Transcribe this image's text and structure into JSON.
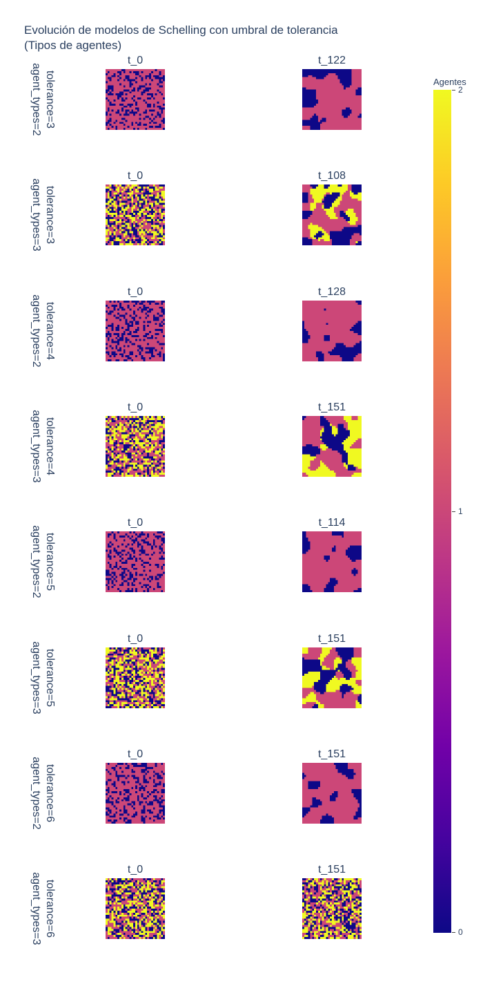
{
  "title_lines": [
    "Evolución de modelos de Schelling con umbral de tolerancia",
    "(Tipos de agentes)"
  ],
  "colorbar": {
    "title": "Agentes",
    "ticks": [
      "2",
      "1",
      "0"
    ],
    "colors": [
      "#0d0887",
      "#46039f",
      "#7201a8",
      "#9c179e",
      "#bd3786",
      "#d8576b",
      "#ed7953",
      "#fb9f3a",
      "#fdca26",
      "#f0f921"
    ]
  },
  "chart_data": {
    "type": "heatmap",
    "title": "Evolución de modelos de Schelling con umbral de tolerancia (Tipos de agentes)",
    "colorscale_title": "Agentes",
    "zlim": [
      0,
      2
    ],
    "grid_size": [
      30,
      30
    ],
    "rows": [
      {
        "label_line1": "agent_types=2",
        "label_line2": "tolerance=3",
        "agent_types": 2,
        "tolerance": 3,
        "panels": [
          {
            "title": "t_0",
            "step": 0,
            "pattern": "random"
          },
          {
            "title": "t_122",
            "step": 122,
            "pattern": "segregated"
          }
        ]
      },
      {
        "label_line1": "agent_types=3",
        "label_line2": "tolerance=3",
        "agent_types": 3,
        "tolerance": 3,
        "panels": [
          {
            "title": "t_0",
            "step": 0,
            "pattern": "random"
          },
          {
            "title": "t_108",
            "step": 108,
            "pattern": "segregated"
          }
        ]
      },
      {
        "label_line1": "agent_types=2",
        "label_line2": "tolerance=4",
        "agent_types": 2,
        "tolerance": 4,
        "panels": [
          {
            "title": "t_0",
            "step": 0,
            "pattern": "random"
          },
          {
            "title": "t_128",
            "step": 128,
            "pattern": "segregated"
          }
        ]
      },
      {
        "label_line1": "agent_types=3",
        "label_line2": "tolerance=4",
        "agent_types": 3,
        "tolerance": 4,
        "panels": [
          {
            "title": "t_0",
            "step": 0,
            "pattern": "random"
          },
          {
            "title": "t_151",
            "step": 151,
            "pattern": "segregated"
          }
        ]
      },
      {
        "label_line1": "agent_types=2",
        "label_line2": "tolerance=5",
        "agent_types": 2,
        "tolerance": 5,
        "panels": [
          {
            "title": "t_0",
            "step": 0,
            "pattern": "random"
          },
          {
            "title": "t_114",
            "step": 114,
            "pattern": "segregated"
          }
        ]
      },
      {
        "label_line1": "agent_types=3",
        "label_line2": "tolerance=5",
        "agent_types": 3,
        "tolerance": 5,
        "panels": [
          {
            "title": "t_0",
            "step": 0,
            "pattern": "random"
          },
          {
            "title": "t_151",
            "step": 151,
            "pattern": "segregated"
          }
        ]
      },
      {
        "label_line1": "agent_types=2",
        "label_line2": "tolerance=6",
        "agent_types": 2,
        "tolerance": 6,
        "panels": [
          {
            "title": "t_0",
            "step": 0,
            "pattern": "random"
          },
          {
            "title": "t_151",
            "step": 151,
            "pattern": "segregated"
          }
        ]
      },
      {
        "label_line1": "agent_types=3",
        "label_line2": "tolerance=6",
        "agent_types": 3,
        "tolerance": 6,
        "panels": [
          {
            "title": "t_0",
            "step": 0,
            "pattern": "random"
          },
          {
            "title": "t_151",
            "step": 151,
            "pattern": "random"
          }
        ]
      }
    ]
  }
}
